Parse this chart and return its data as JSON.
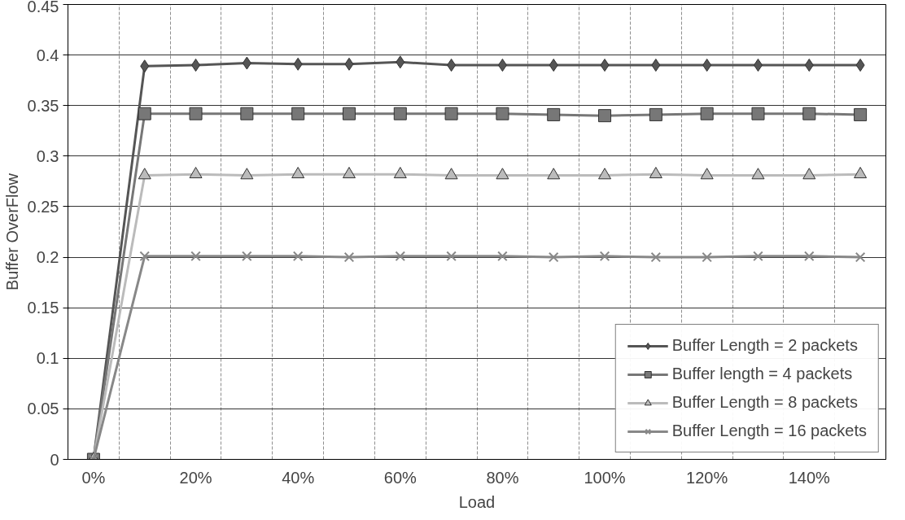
{
  "chart_data": {
    "type": "line",
    "xlabel": "Load",
    "ylabel": "Buffer OverFlow",
    "categories": [
      "0%",
      null,
      "20%",
      null,
      "40%",
      null,
      "60%",
      null,
      "80%",
      null,
      "100%",
      null,
      "120%",
      null,
      "140%",
      null
    ],
    "ylim": [
      0,
      0.45
    ],
    "yticks": [
      0,
      0.05,
      0.1,
      0.15,
      0.2,
      0.25,
      0.3,
      0.35,
      0.4,
      0.45
    ],
    "grid": true,
    "legend": "bottom right",
    "line_style": "solid",
    "series": [
      {
        "name": "Buffer Length = 2 packets",
        "color": "#555555",
        "marker": "diamond",
        "values": [
          0,
          0.389,
          0.39,
          0.392,
          0.391,
          0.391,
          0.393,
          0.39,
          0.39,
          0.39,
          0.39,
          0.39,
          0.39,
          0.39,
          0.39,
          0.39
        ]
      },
      {
        "name": "Buffer length = 4 packets",
        "color": "#777777",
        "marker": "square",
        "values": [
          0,
          0.342,
          0.342,
          0.342,
          0.342,
          0.342,
          0.342,
          0.342,
          0.342,
          0.341,
          0.34,
          0.341,
          0.342,
          0.342,
          0.342,
          0.341
        ]
      },
      {
        "name": "Buffer Length = 8 packets",
        "color": "#bbbbbb",
        "marker": "triangle",
        "values": [
          0,
          0.281,
          0.282,
          0.281,
          0.282,
          0.282,
          0.282,
          0.281,
          0.281,
          0.281,
          0.281,
          0.282,
          0.281,
          0.281,
          0.281,
          0.282
        ]
      },
      {
        "name": "Buffer Length = 16 packets",
        "color": "#888888",
        "marker": "cross",
        "values": [
          0,
          0.201,
          0.201,
          0.201,
          0.201,
          0.2,
          0.201,
          0.201,
          0.201,
          0.2,
          0.201,
          0.2,
          0.2,
          0.201,
          0.201,
          0.2
        ]
      }
    ]
  }
}
